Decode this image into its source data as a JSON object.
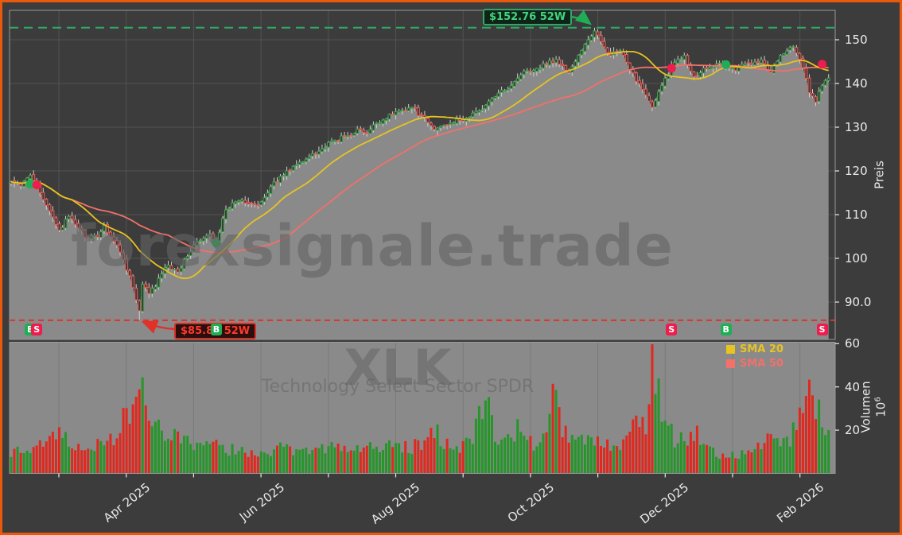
{
  "meta": {
    "watermark": "forexsignale.trade",
    "symbol": "XLK",
    "symbol_name": "Technology Select Sector SPDR"
  },
  "colors": {
    "frame_border": "#e8590c",
    "background": "#3c3c3c",
    "panel_gray": "#8a8a8a",
    "grid": "#525252",
    "spine": "#999999",
    "wick": "#cfcfcf",
    "candle_up": "#3fa34d",
    "candle_down": "#ef5a52",
    "volume_up": "#26962b",
    "volume_down": "#e0281e",
    "sma20": "#e7c41f",
    "sma50": "#f2716a",
    "high_line": "#2fa866",
    "high_text": "#41d57e",
    "low_line": "#e03228",
    "low_text": "#ff392c",
    "buy": "#1fae55",
    "sell": "#ee1d4e",
    "axis_text": "#e9e9e9",
    "watermark": "#646464"
  },
  "axes": {
    "price_label": "Preis",
    "volume_label": "Volumen",
    "volume_scale_base": "10",
    "volume_scale_exp": "6",
    "price_ticks": [
      {
        "v": 150,
        "label": "150"
      },
      {
        "v": 140,
        "label": "140"
      },
      {
        "v": 130,
        "label": "130"
      },
      {
        "v": 120,
        "label": "120"
      },
      {
        "v": 110,
        "label": "110"
      },
      {
        "v": 100,
        "label": "100"
      },
      {
        "v": 90,
        "label": "90.0"
      }
    ],
    "volume_ticks": [
      {
        "v": 60,
        "label": "60"
      },
      {
        "v": 40,
        "label": "40"
      },
      {
        "v": 20,
        "label": "20"
      }
    ],
    "x_ticks": [
      {
        "month_index": 1,
        "label": "Apr 2025"
      },
      {
        "month_index": 3,
        "label": "Jun 2025"
      },
      {
        "month_index": 5,
        "label": "Aug 2025"
      },
      {
        "month_index": 7,
        "label": "Oct 2025"
      },
      {
        "month_index": 9,
        "label": "Dec 2025"
      },
      {
        "month_index": 11,
        "label": "Feb 2026"
      }
    ]
  },
  "annotations": {
    "high": {
      "label": "$152.76 52W",
      "value": 152.76
    },
    "low": {
      "label": "$85.84 52W",
      "value": 85.84
    }
  },
  "legend": [
    {
      "label": "SMA 20",
      "color": "#e7c41f"
    },
    {
      "label": "SMA 50",
      "color": "#f2716a"
    }
  ],
  "signals": {
    "buy_label": "B",
    "sell_label": "S",
    "events": [
      {
        "type": "buy",
        "day": 6,
        "price": 117.0
      },
      {
        "type": "sell",
        "day": 8,
        "price": 116.8
      },
      {
        "type": "buy",
        "day": 64,
        "price": 103.5
      },
      {
        "type": "sell",
        "day": 206,
        "price": 143.5
      },
      {
        "type": "buy",
        "day": 223,
        "price": 144.3
      },
      {
        "type": "sell",
        "day": 253,
        "price": 144.4
      }
    ]
  },
  "chart_data": {
    "type": "candlestick",
    "symbol": "XLK",
    "high_52w": 152.76,
    "low_52w": 85.84,
    "price_axis": {
      "label": "Preis",
      "ticks": [
        90,
        100,
        110,
        120,
        130,
        140,
        150
      ],
      "range": [
        84,
        156
      ]
    },
    "volume_axis": {
      "label": "Volumen",
      "scale_exponent": 6,
      "ticks": [
        20,
        40,
        60
      ],
      "range": [
        0,
        62
      ]
    },
    "x_axis": {
      "tick_labels": [
        "Apr 2025",
        "Jun 2025",
        "Aug 2025",
        "Oct 2025",
        "Dec 2025",
        "Feb 2026"
      ],
      "months_spanned": 12
    },
    "overlays": [
      {
        "name": "SMA 20",
        "window": 20,
        "color": "#e7c41f"
      },
      {
        "name": "SMA 50",
        "window": 50,
        "color": "#f2716a"
      }
    ],
    "price_anchors": [
      [
        0,
        117.5
      ],
      [
        3,
        116.5
      ],
      [
        6,
        119.0
      ],
      [
        8,
        117.0
      ],
      [
        11,
        112.0
      ],
      [
        15,
        106.5
      ],
      [
        18,
        109.5
      ],
      [
        21,
        107.0
      ],
      [
        24,
        104.5
      ],
      [
        27,
        105.0
      ],
      [
        29,
        107.5
      ],
      [
        32,
        104.0
      ],
      [
        34,
        101.5
      ],
      [
        37,
        96.0
      ],
      [
        39,
        90.5
      ],
      [
        40,
        88.0
      ],
      [
        41,
        94.0
      ],
      [
        43,
        92.0
      ],
      [
        45,
        93.5
      ],
      [
        47,
        96.5
      ],
      [
        49,
        98.5
      ],
      [
        52,
        97.0
      ],
      [
        55,
        100.5
      ],
      [
        57,
        103.0
      ],
      [
        60,
        104.5
      ],
      [
        62,
        105.5
      ],
      [
        64,
        104.0
      ],
      [
        67,
        111.0
      ],
      [
        70,
        113.0
      ],
      [
        72,
        113.5
      ],
      [
        75,
        112.5
      ],
      [
        77,
        112.0
      ],
      [
        80,
        115.0
      ],
      [
        82,
        117.5
      ],
      [
        85,
        119.0
      ],
      [
        88,
        121.0
      ],
      [
        91,
        122.0
      ],
      [
        94,
        124.0
      ],
      [
        97,
        125.0
      ],
      [
        101,
        127.0
      ],
      [
        105,
        128.0
      ],
      [
        108,
        129.5
      ],
      [
        111,
        128.5
      ],
      [
        114,
        131.0
      ],
      [
        117,
        132.0
      ],
      [
        119,
        133.0
      ],
      [
        122,
        134.0
      ],
      [
        125,
        134.5
      ],
      [
        128,
        132.5
      ],
      [
        132,
        129.5
      ],
      [
        135,
        130.5
      ],
      [
        137,
        131.0
      ],
      [
        140,
        131.5
      ],
      [
        142,
        132.0
      ],
      [
        145,
        133.5
      ],
      [
        148,
        135.0
      ],
      [
        151,
        137.0
      ],
      [
        154,
        138.5
      ],
      [
        157,
        140.5
      ],
      [
        159,
        142.0
      ],
      [
        161,
        143.0
      ],
      [
        164,
        143.5
      ],
      [
        167,
        144.5
      ],
      [
        170,
        145.5
      ],
      [
        172,
        144.0
      ],
      [
        174,
        142.5
      ],
      [
        176,
        145.0
      ],
      [
        178,
        147.5
      ],
      [
        180,
        150.0
      ],
      [
        182,
        152.0
      ],
      [
        184,
        149.5
      ],
      [
        187,
        146.5
      ],
      [
        190,
        147.5
      ],
      [
        193,
        143.0
      ],
      [
        196,
        140.0
      ],
      [
        198,
        137.5
      ],
      [
        200,
        134.5
      ],
      [
        201,
        136.0
      ],
      [
        203,
        139.5
      ],
      [
        206,
        144.0
      ],
      [
        208,
        145.5
      ],
      [
        210,
        146.5
      ],
      [
        213,
        141.5
      ],
      [
        216,
        143.5
      ],
      [
        220,
        144.5
      ],
      [
        223,
        144.0
      ],
      [
        226,
        143.0
      ],
      [
        229,
        144.5
      ],
      [
        232,
        145.0
      ],
      [
        234,
        145.5
      ],
      [
        237,
        142.5
      ],
      [
        240,
        146.5
      ],
      [
        244,
        148.5
      ],
      [
        247,
        143.5
      ],
      [
        249,
        138.0
      ],
      [
        251,
        135.8
      ],
      [
        253,
        139.5
      ],
      [
        255,
        141.3
      ]
    ],
    "volume_anchors_millions": [
      [
        0,
        9
      ],
      [
        6,
        12
      ],
      [
        12,
        16
      ],
      [
        15,
        20
      ],
      [
        20,
        12
      ],
      [
        24,
        14
      ],
      [
        30,
        13
      ],
      [
        34,
        22
      ],
      [
        38,
        30
      ],
      [
        40,
        43
      ],
      [
        41,
        40
      ],
      [
        43,
        30
      ],
      [
        45,
        25
      ],
      [
        48,
        18
      ],
      [
        52,
        16
      ],
      [
        56,
        13
      ],
      [
        60,
        12
      ],
      [
        64,
        13
      ],
      [
        68,
        11
      ],
      [
        72,
        10
      ],
      [
        76,
        11
      ],
      [
        80,
        10
      ],
      [
        85,
        12
      ],
      [
        90,
        11
      ],
      [
        95,
        13
      ],
      [
        100,
        12
      ],
      [
        105,
        11
      ],
      [
        110,
        12
      ],
      [
        115,
        11
      ],
      [
        119,
        14
      ],
      [
        124,
        12
      ],
      [
        128,
        13
      ],
      [
        132,
        19
      ],
      [
        136,
        14
      ],
      [
        140,
        13
      ],
      [
        144,
        15
      ],
      [
        148,
        38
      ],
      [
        151,
        16
      ],
      [
        154,
        15
      ],
      [
        157,
        18
      ],
      [
        159,
        22
      ],
      [
        161,
        15
      ],
      [
        164,
        14
      ],
      [
        167,
        16
      ],
      [
        170,
        44
      ],
      [
        172,
        20
      ],
      [
        175,
        15
      ],
      [
        178,
        14
      ],
      [
        182,
        16
      ],
      [
        185,
        14
      ],
      [
        188,
        13
      ],
      [
        190,
        14
      ],
      [
        193,
        22
      ],
      [
        196,
        25
      ],
      [
        198,
        20
      ],
      [
        200,
        57
      ],
      [
        201,
        44
      ],
      [
        203,
        26
      ],
      [
        206,
        18
      ],
      [
        208,
        15
      ],
      [
        210,
        15
      ],
      [
        213,
        20
      ],
      [
        216,
        12
      ],
      [
        219,
        10
      ],
      [
        223,
        8
      ],
      [
        226,
        9
      ],
      [
        229,
        10
      ],
      [
        232,
        11
      ],
      [
        234,
        12
      ],
      [
        237,
        18
      ],
      [
        240,
        14
      ],
      [
        243,
        16
      ],
      [
        244,
        20
      ],
      [
        247,
        28
      ],
      [
        249,
        46
      ],
      [
        250,
        44
      ],
      [
        251,
        30
      ],
      [
        253,
        24
      ],
      [
        255,
        18
      ]
    ]
  }
}
